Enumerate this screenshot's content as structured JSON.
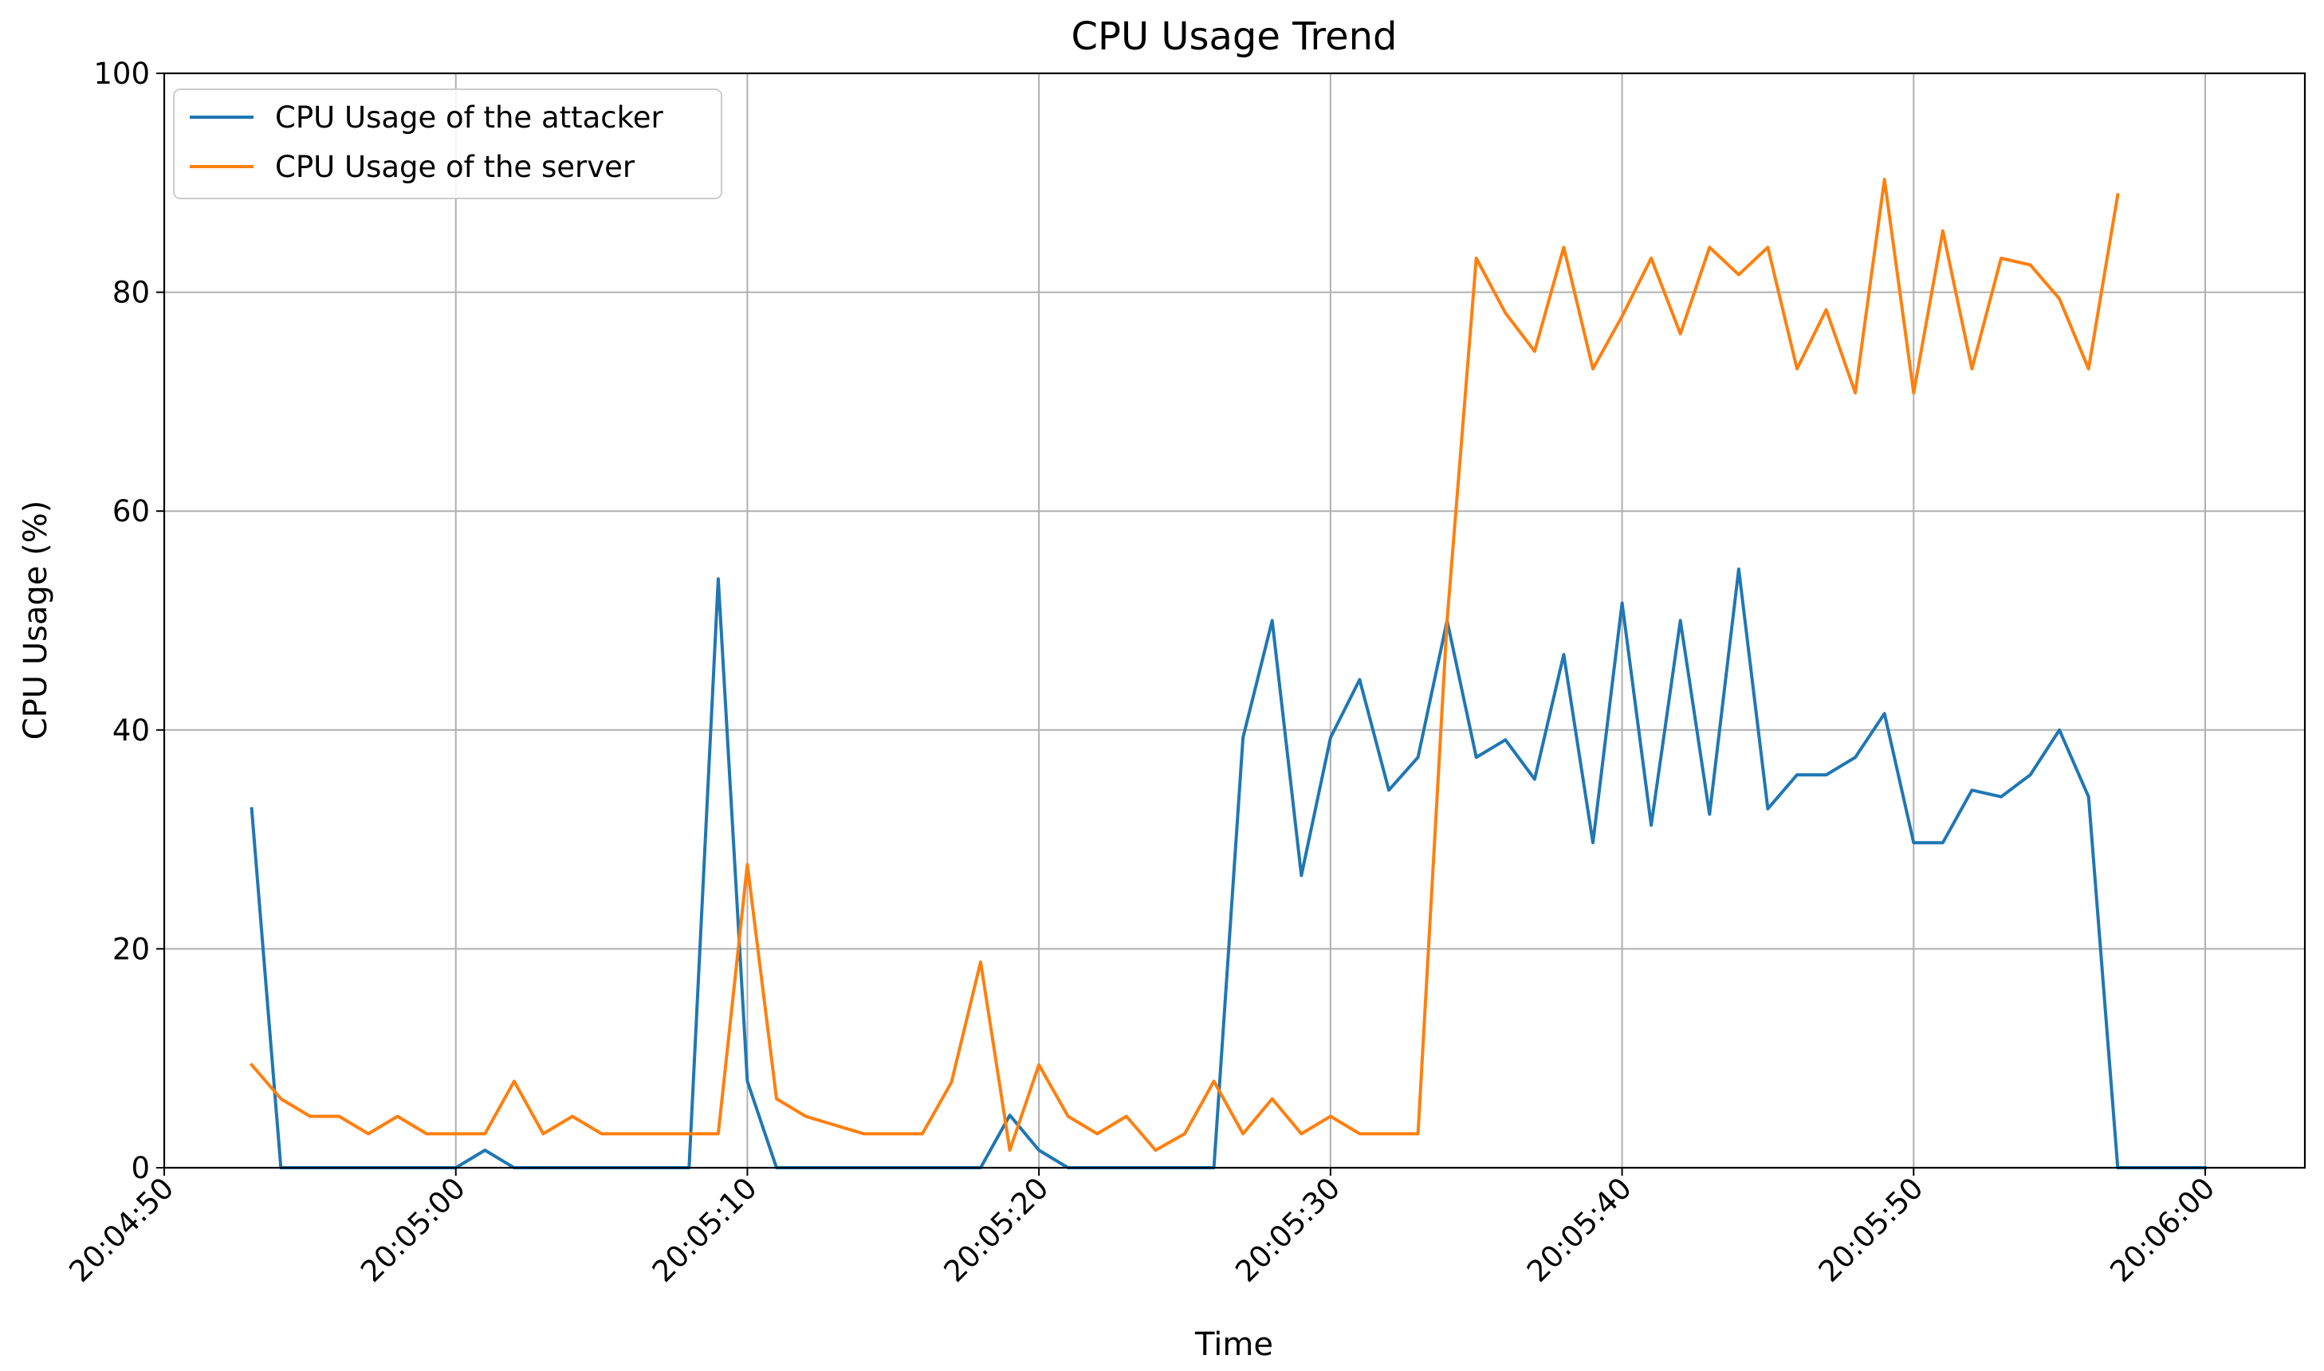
{
  "chart_data": {
    "type": "line",
    "title": "CPU Usage Trend",
    "xlabel": "Time",
    "ylabel": "CPU Usage (%)",
    "ylim": [
      0,
      100
    ],
    "xlim": [
      "20:04:50",
      "20:06:00"
    ],
    "yticks": [
      0,
      20,
      40,
      60,
      80,
      100
    ],
    "xticks": [
      "20:04:50",
      "20:05:00",
      "20:05:10",
      "20:05:20",
      "20:05:30",
      "20:05:40",
      "20:05:50",
      "20:06:00"
    ],
    "grid": true,
    "legend_position": "top-left",
    "x": [
      "20:04:53",
      "20:04:54",
      "20:04:55",
      "20:04:56",
      "20:04:57",
      "20:04:58",
      "20:04:59",
      "20:05:00",
      "20:05:01",
      "20:05:02",
      "20:05:03",
      "20:05:04",
      "20:05:05",
      "20:05:06",
      "20:05:07",
      "20:05:08",
      "20:05:09",
      "20:05:10",
      "20:05:11",
      "20:05:12",
      "20:05:13",
      "20:05:14",
      "20:05:15",
      "20:05:16",
      "20:05:17",
      "20:05:18",
      "20:05:19",
      "20:05:20",
      "20:05:21",
      "20:05:22",
      "20:05:23",
      "20:05:24",
      "20:05:25",
      "20:05:26",
      "20:05:27",
      "20:05:28",
      "20:05:29",
      "20:05:30",
      "20:05:31",
      "20:05:32",
      "20:05:33",
      "20:05:34",
      "20:05:35",
      "20:05:36",
      "20:05:37",
      "20:05:38",
      "20:05:39",
      "20:05:40",
      "20:05:41",
      "20:05:42",
      "20:05:43",
      "20:05:44",
      "20:05:45",
      "20:05:46",
      "20:05:47",
      "20:05:48",
      "20:05:49",
      "20:05:50",
      "20:05:51",
      "20:05:52",
      "20:05:53",
      "20:05:54",
      "20:05:55",
      "20:05:56",
      "20:05:57",
      "20:05:58",
      "20:05:59",
      "20:06:00"
    ],
    "series": [
      {
        "name": "CPU Usage of the attacker",
        "color": "#1f77b4",
        "values": [
          32.8,
          0,
          0,
          0,
          0,
          0,
          0,
          0,
          1.6,
          0,
          0,
          0,
          0,
          0,
          0,
          0,
          53.8,
          7.9,
          0,
          0,
          0,
          0,
          0,
          0,
          0,
          0,
          4.8,
          1.6,
          0,
          0,
          0,
          0,
          0,
          0,
          39.3,
          50.0,
          26.7,
          39.3,
          44.6,
          34.5,
          37.5,
          50.0,
          37.5,
          39.1,
          35.5,
          46.9,
          29.7,
          51.6,
          31.3,
          50.0,
          32.3,
          54.7,
          32.8,
          35.9,
          35.9,
          37.5,
          41.5,
          29.7,
          29.7,
          34.5,
          33.9,
          35.9,
          40.0,
          33.9,
          0,
          0,
          0,
          0
        ]
      },
      {
        "name": "CPU Usage of the server",
        "color": "#ff7f0e",
        "values": [
          9.4,
          6.3,
          4.7,
          4.7,
          3.1,
          4.7,
          3.1,
          3.1,
          3.1,
          7.9,
          3.1,
          4.7,
          3.1,
          3.1,
          3.1,
          3.1,
          3.1,
          27.7,
          6.3,
          4.7,
          3.9,
          3.1,
          3.1,
          3.1,
          7.8,
          18.8,
          1.6,
          9.4,
          4.7,
          3.1,
          4.7,
          1.6,
          3.1,
          7.9,
          3.1,
          6.3,
          3.1,
          4.7,
          3.1,
          3.1,
          3.1,
          50.0,
          83.1,
          78.1,
          74.6,
          84.1,
          73.0,
          77.8,
          83.1,
          76.2,
          84.1,
          81.6,
          84.1,
          73.0,
          78.4,
          70.8,
          90.3,
          70.8,
          85.6,
          73.0,
          83.1,
          82.5,
          79.4,
          73.0,
          88.9,
          null,
          null,
          null
        ]
      }
    ]
  }
}
